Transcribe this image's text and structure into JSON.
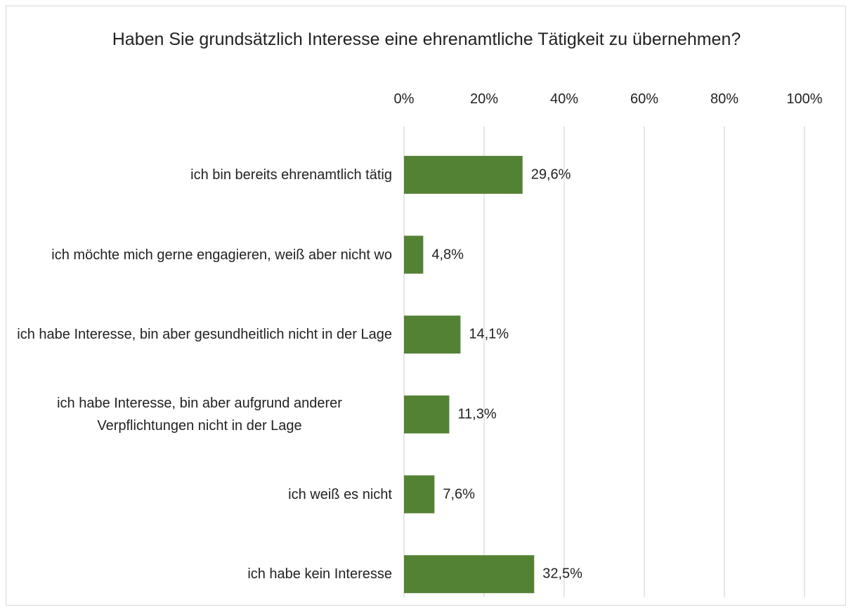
{
  "chart_data": {
    "type": "bar",
    "orientation": "horizontal",
    "title": "Haben Sie grundsätzlich Interesse eine ehrenamtliche Tätigkeit zu übernehmen?",
    "categories": [
      "ich bin bereits ehrenamtlich tätig",
      "ich möchte mich gerne engagieren, weiß aber nicht wo",
      "ich habe Interesse, bin aber gesundheitlich nicht in der Lage",
      "ich habe Interesse, bin aber aufgrund anderer Verpflichtungen nicht in der Lage",
      "ich weiß es nicht",
      "ich habe kein Interesse"
    ],
    "values": [
      29.6,
      4.8,
      14.1,
      11.3,
      7.6,
      32.5
    ],
    "value_labels": [
      "29,6%",
      "4,8%",
      "14,1%",
      "11,3%",
      "7,6%",
      "32,5%"
    ],
    "color": "#548235",
    "xlim": [
      0,
      100
    ],
    "xticks": [
      {
        "value": 0,
        "label": "0%"
      },
      {
        "value": 20,
        "label": "20%"
      },
      {
        "value": 40,
        "label": "40%"
      },
      {
        "value": 60,
        "label": "60%"
      },
      {
        "value": 80,
        "label": "80%"
      },
      {
        "value": 100,
        "label": "100%"
      }
    ],
    "grid": true
  }
}
